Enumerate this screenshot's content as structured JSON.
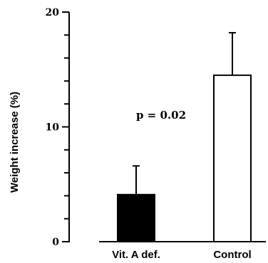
{
  "chart_data": {
    "type": "bar",
    "categories": [
      "Vit. A def.",
      "Control"
    ],
    "values": [
      4.1,
      14.5
    ],
    "errors": [
      2.5,
      3.7
    ],
    "ylabel": "Weight increase (%)",
    "xlabel": "",
    "ylim": [
      0,
      20
    ],
    "yticks": [
      0,
      10,
      20
    ],
    "ytick_labels": [
      "0",
      "10",
      "20"
    ],
    "minor_tick_step": 2,
    "grid": false,
    "annotation": "p = 0.02",
    "colors": {
      "bar_fills": [
        "#000000",
        "#ffffff"
      ],
      "stroke": "#000000"
    }
  }
}
